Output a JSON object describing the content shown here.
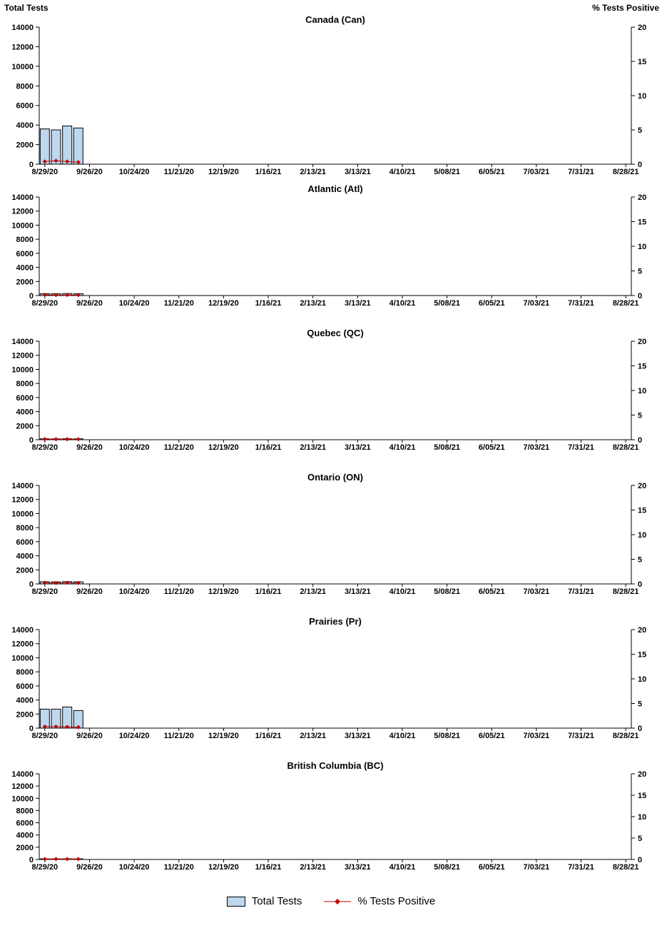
{
  "header": {
    "left_axis_title": "Total Tests",
    "right_axis_title": "% Tests Positive"
  },
  "legend": {
    "items": [
      {
        "label": "Total Tests",
        "marker": "bar-swatch"
      },
      {
        "label": "% Tests Positive",
        "marker": "line-diamond"
      }
    ]
  },
  "colors": {
    "bar_fill": "#BDD7EE",
    "bar_stroke": "#000000",
    "line_color": "#C00000",
    "axis_color": "#000000",
    "text_color": "#000000"
  },
  "axes": {
    "x": {
      "tick_labels": [
        "8/29/20",
        "9/26/20",
        "10/24/20",
        "11/21/20",
        "12/19/20",
        "1/16/21",
        "2/13/21",
        "3/13/21",
        "4/10/21",
        "5/08/21",
        "6/05/21",
        "7/03/21",
        "7/31/21",
        "8/28/21"
      ],
      "n_weeks": 53,
      "ticks_every_weeks": 4,
      "start_date": "8/29/20",
      "end_date": "8/28/21"
    },
    "y_left": {
      "title": "Total Tests",
      "min": 0,
      "max": 14000,
      "tick_labels": [
        "0",
        "2000",
        "4000",
        "6000",
        "8000",
        "10000",
        "12000",
        "14000"
      ]
    },
    "y_right": {
      "title": "% Tests Positive",
      "min": 0,
      "max": 20,
      "tick_labels": [
        "0",
        "5",
        "10",
        "15",
        "20"
      ]
    }
  },
  "chart_data": [
    {
      "type": "bar",
      "title": "Canada (Can)",
      "x_weeks": [
        0,
        1,
        2,
        3
      ],
      "series": [
        {
          "name": "Total Tests",
          "type": "bar",
          "axis": "left",
          "values": [
            3600,
            3500,
            3900,
            3700
          ]
        },
        {
          "name": "% Tests Positive",
          "type": "line",
          "axis": "right",
          "values": [
            0.4,
            0.5,
            0.4,
            0.3
          ]
        }
      ]
    },
    {
      "type": "bar",
      "title": "Atlantic (Atl)",
      "x_weeks": [
        0,
        1,
        2,
        3
      ],
      "series": [
        {
          "name": "Total Tests",
          "type": "bar",
          "axis": "left",
          "values": [
            260,
            250,
            280,
            260
          ]
        },
        {
          "name": "% Tests Positive",
          "type": "line",
          "axis": "right",
          "values": [
            0.15,
            0.1,
            0.1,
            0.1
          ]
        }
      ]
    },
    {
      "type": "bar",
      "title": "Quebec (QC)",
      "x_weeks": [
        0,
        1,
        2,
        3
      ],
      "series": [
        {
          "name": "Total Tests",
          "type": "bar",
          "axis": "left",
          "values": [
            130,
            120,
            140,
            130
          ]
        },
        {
          "name": "% Tests Positive",
          "type": "line",
          "axis": "right",
          "values": [
            0.1,
            0.1,
            0.1,
            0.1
          ]
        }
      ]
    },
    {
      "type": "bar",
      "title": "Ontario (ON)",
      "x_weeks": [
        0,
        1,
        2,
        3
      ],
      "series": [
        {
          "name": "Total Tests",
          "type": "bar",
          "axis": "left",
          "values": [
            300,
            280,
            320,
            300
          ]
        },
        {
          "name": "% Tests Positive",
          "type": "line",
          "axis": "right",
          "values": [
            0.25,
            0.2,
            0.25,
            0.2
          ]
        }
      ]
    },
    {
      "type": "bar",
      "title": "Prairies (Pr)",
      "x_weeks": [
        0,
        1,
        2,
        3
      ],
      "series": [
        {
          "name": "Total Tests",
          "type": "bar",
          "axis": "left",
          "values": [
            2700,
            2700,
            3000,
            2500
          ]
        },
        {
          "name": "% Tests Positive",
          "type": "line",
          "axis": "right",
          "values": [
            0.3,
            0.3,
            0.25,
            0.2
          ]
        }
      ]
    },
    {
      "type": "bar",
      "title": "British Columbia (BC)",
      "x_weeks": [
        0,
        1,
        2,
        3
      ],
      "series": [
        {
          "name": "Total Tests",
          "type": "bar",
          "axis": "left",
          "values": [
            110,
            100,
            120,
            110
          ]
        },
        {
          "name": "% Tests Positive",
          "type": "line",
          "axis": "right",
          "values": [
            0.1,
            0.1,
            0.1,
            0.1
          ]
        }
      ]
    }
  ]
}
